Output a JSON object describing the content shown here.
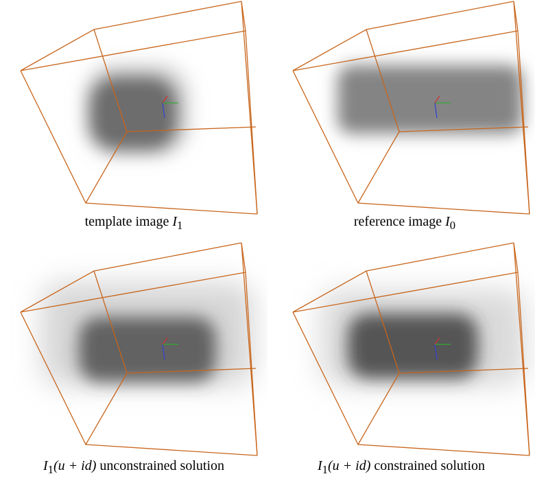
{
  "panels": [
    {
      "text": "template image",
      "symbol": "I",
      "subscript": "1"
    },
    {
      "text": "reference image",
      "symbol": "I",
      "subscript": "0"
    },
    {
      "symbol": "I",
      "subscript": "1",
      "argument": "(u + id)",
      "text": "unconstrained solution"
    },
    {
      "symbol": "I",
      "subscript": "1",
      "argument": "(u + id)",
      "text": "constrained solution"
    }
  ]
}
